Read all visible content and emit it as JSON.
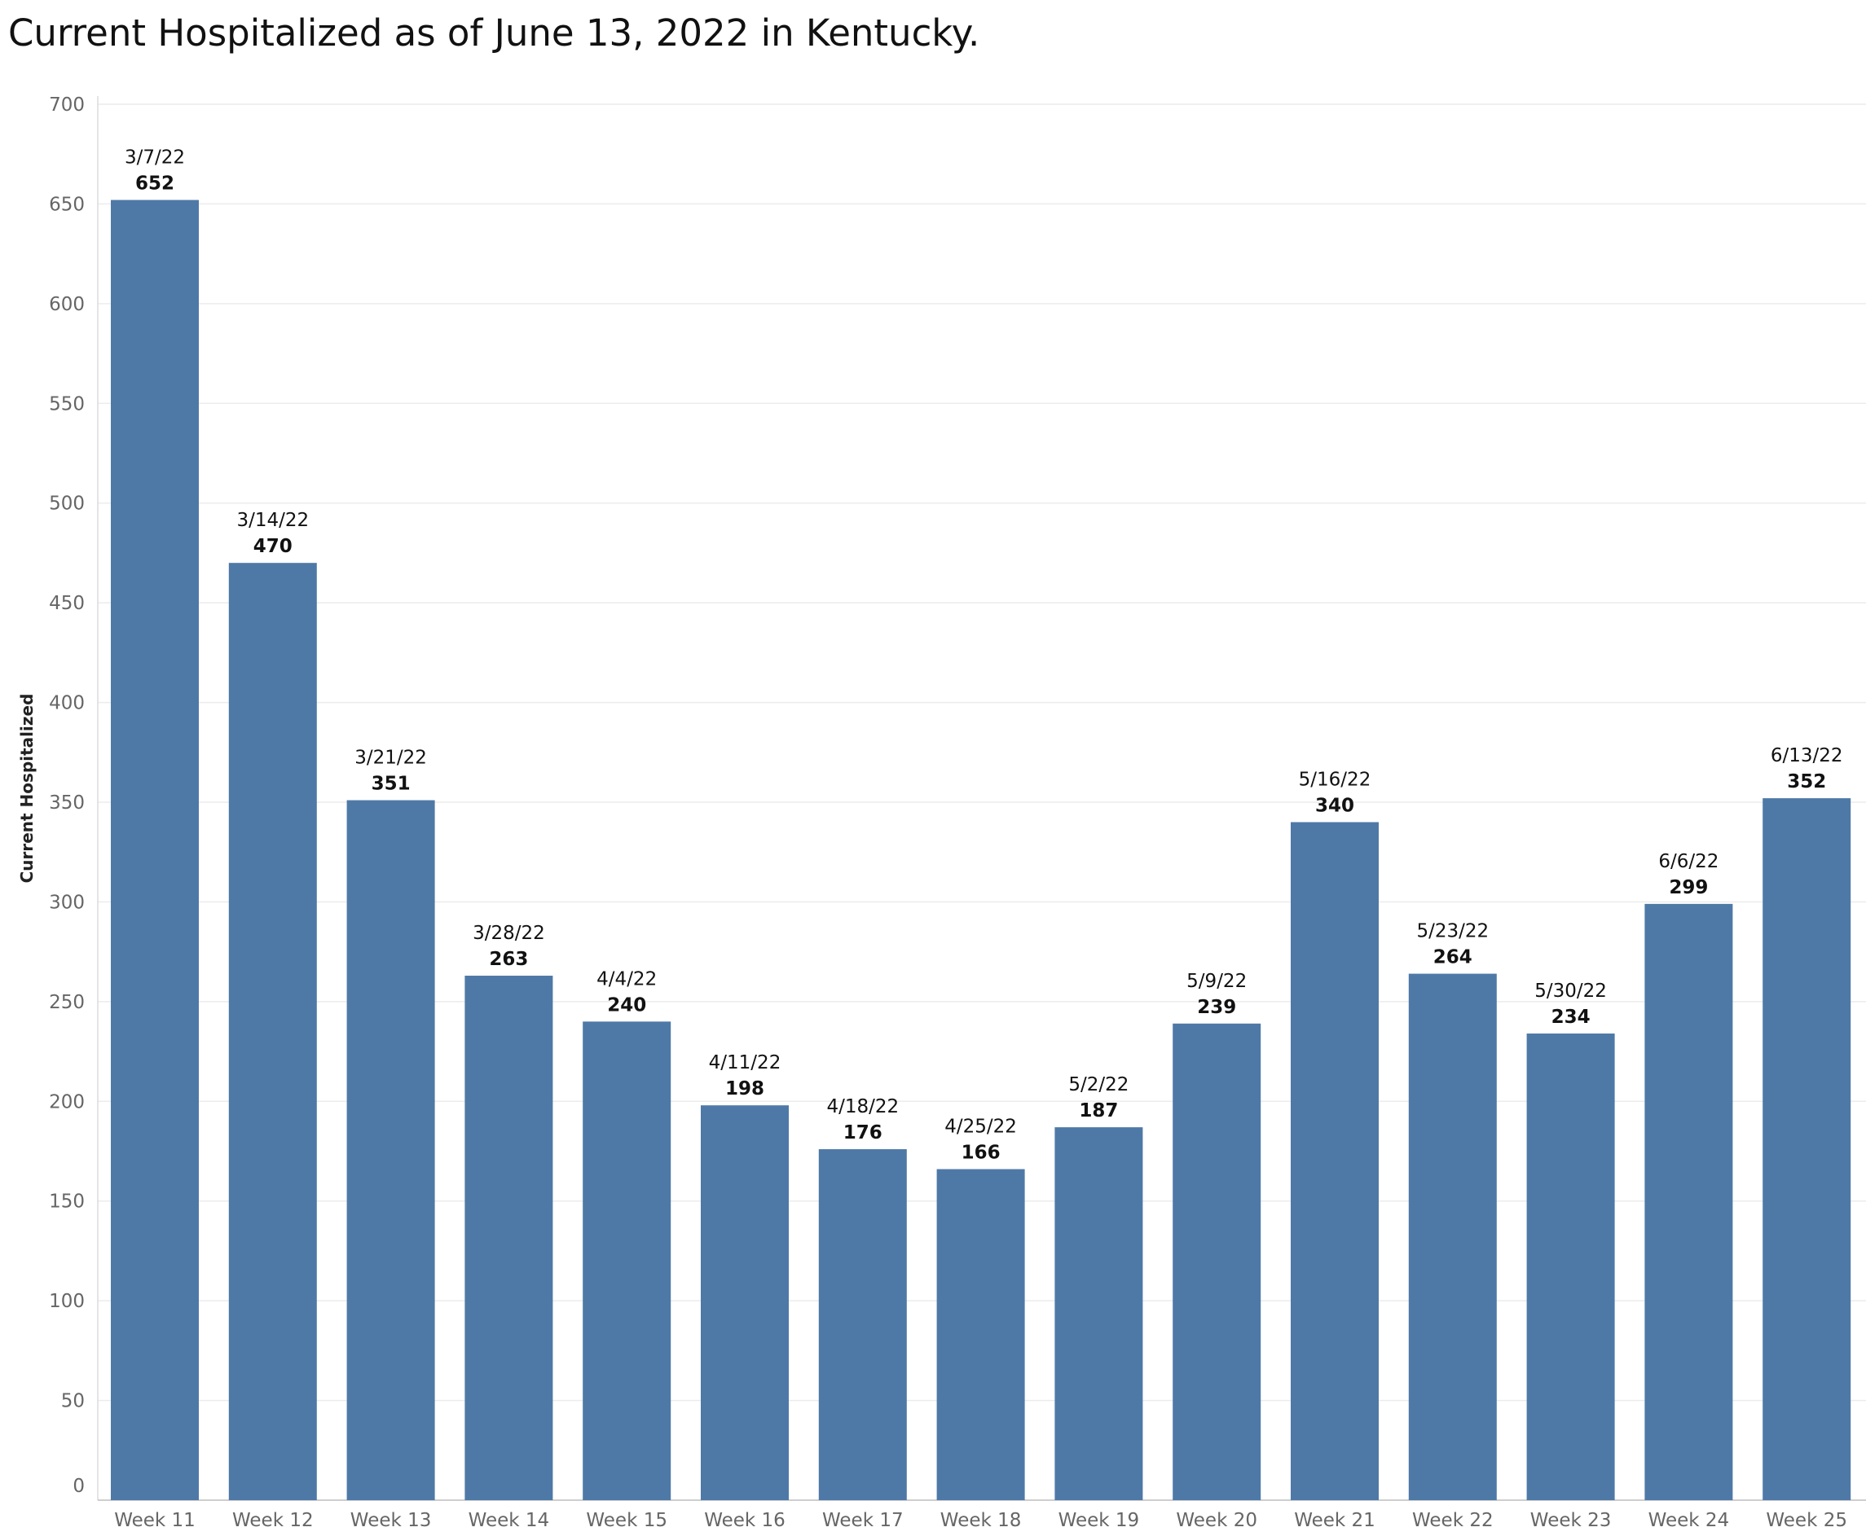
{
  "chart_data": {
    "type": "bar",
    "title": "Current Hospitalized as of June 13, 2022 in Kentucky.",
    "xlabel": "",
    "ylabel": "Current Hospitalized",
    "ylim": [
      0,
      700
    ],
    "yticks": [
      0,
      50,
      100,
      150,
      200,
      250,
      300,
      350,
      400,
      450,
      500,
      550,
      600,
      650,
      700
    ],
    "grid": true,
    "bar_color": "#4e79a7",
    "categories": [
      "Week 11",
      "Week 12",
      "Week 13",
      "Week 14",
      "Week 15",
      "Week 16",
      "Week 17",
      "Week 18",
      "Week 19",
      "Week 20",
      "Week 21",
      "Week 22",
      "Week 23",
      "Week 24",
      "Week 25"
    ],
    "dates": [
      "3/7/22",
      "3/14/22",
      "3/21/22",
      "3/28/22",
      "4/4/22",
      "4/11/22",
      "4/18/22",
      "4/25/22",
      "5/2/22",
      "5/9/22",
      "5/16/22",
      "5/23/22",
      "5/30/22",
      "6/6/22",
      "6/13/22"
    ],
    "values": [
      652,
      470,
      351,
      263,
      240,
      198,
      176,
      166,
      187,
      239,
      340,
      264,
      234,
      299,
      352
    ]
  }
}
